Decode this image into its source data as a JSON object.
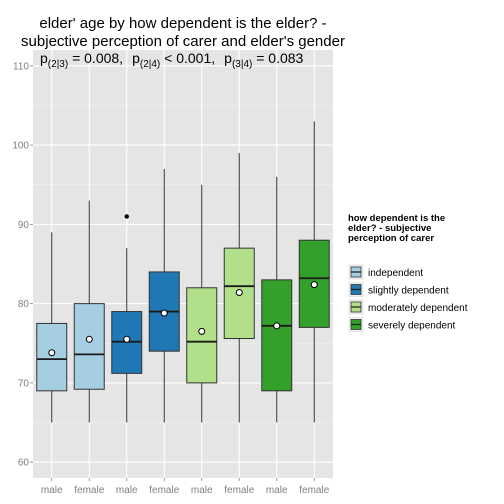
{
  "chart_data": {
    "type": "box",
    "title_lines": [
      "elder' age by how dependent is the elder? -",
      "subjective perception of carer and elder's gender"
    ],
    "pvalues": [
      {
        "prefix": "p",
        "sub": "(2|3)",
        "rel": "=",
        "value": "0.008,"
      },
      {
        "prefix": "p",
        "sub": "(2|4)",
        "rel": "<",
        "value": "0.001,"
      },
      {
        "prefix": "p",
        "sub": "(3|4)",
        "rel": "=",
        "value": "0.083"
      }
    ],
    "categories": [
      "male",
      "female",
      "male",
      "female",
      "male",
      "female",
      "male",
      "female"
    ],
    "ylim": [
      58,
      112
    ],
    "yticks": [
      60,
      70,
      80,
      90,
      100,
      110
    ],
    "grid": true,
    "legend": {
      "title_lines": [
        "how dependent is the",
        "elder? - subjective",
        "perception of carer"
      ],
      "placement": "right",
      "items": [
        {
          "label": "independent",
          "color": "#a6cee3"
        },
        {
          "label": "slightly dependent",
          "color": "#1f78b4"
        },
        {
          "label": "moderately dependent",
          "color": "#b2df8a"
        },
        {
          "label": "severely dependent",
          "color": "#33a02c"
        }
      ]
    },
    "boxes": [
      {
        "group": 0,
        "min": 65,
        "q1": 69,
        "median": 73,
        "q3": 77.5,
        "max": 89,
        "mean": 73.8,
        "outliers": []
      },
      {
        "group": 0,
        "min": 65,
        "q1": 69.2,
        "median": 73.6,
        "q3": 80,
        "max": 93,
        "mean": 75.5,
        "outliers": []
      },
      {
        "group": 1,
        "min": 65,
        "q1": 71.2,
        "median": 75.2,
        "q3": 79,
        "max": 87,
        "mean": 75.5,
        "outliers": [
          91
        ]
      },
      {
        "group": 1,
        "min": 65,
        "q1": 74,
        "median": 79,
        "q3": 84,
        "max": 97,
        "mean": 78.8,
        "outliers": []
      },
      {
        "group": 2,
        "min": 65,
        "q1": 70,
        "median": 75.2,
        "q3": 82,
        "max": 95,
        "mean": 76.5,
        "outliers": []
      },
      {
        "group": 2,
        "min": 65,
        "q1": 75.6,
        "median": 82.2,
        "q3": 87,
        "max": 99,
        "mean": 81.4,
        "outliers": []
      },
      {
        "group": 3,
        "min": 65,
        "q1": 69,
        "median": 77.2,
        "q3": 83,
        "max": 96,
        "mean": 77.2,
        "outliers": []
      },
      {
        "group": 3,
        "min": 65,
        "q1": 77,
        "median": 83.2,
        "q3": 88,
        "max": 103,
        "mean": 82.4,
        "outliers": []
      }
    ]
  }
}
